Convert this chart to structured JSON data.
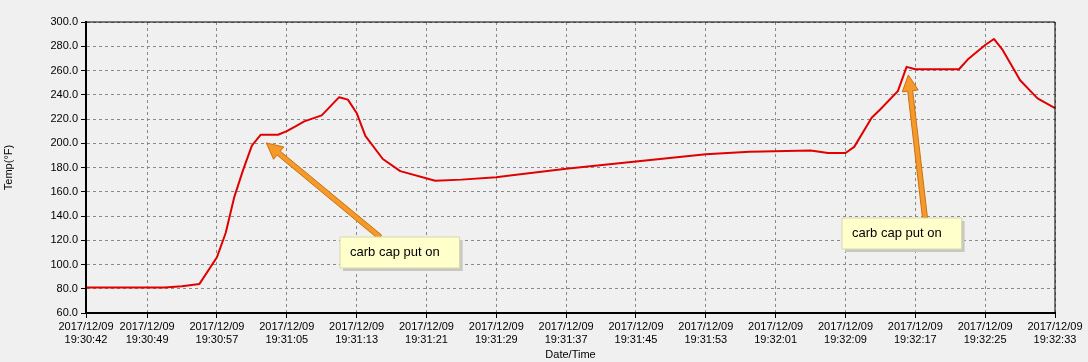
{
  "chart_data": {
    "type": "line",
    "xlabel": "Date/Time",
    "ylabel": "Temp(°F)",
    "x": [
      "2017-12-09T19:30:42",
      "2017-12-09T19:30:51",
      "2017-12-09T19:30:53",
      "2017-12-09T19:30:55",
      "2017-12-09T19:30:57",
      "2017-12-09T19:30:58",
      "2017-12-09T19:30:59",
      "2017-12-09T19:31:00",
      "2017-12-09T19:31:01",
      "2017-12-09T19:31:02",
      "2017-12-09T19:31:04",
      "2017-12-09T19:31:05",
      "2017-12-09T19:31:06",
      "2017-12-09T19:31:07",
      "2017-12-09T19:31:09",
      "2017-12-09T19:31:11",
      "2017-12-09T19:31:12",
      "2017-12-09T19:31:13",
      "2017-12-09T19:31:14",
      "2017-12-09T19:31:16",
      "2017-12-09T19:31:18",
      "2017-12-09T19:31:22",
      "2017-12-09T19:31:25",
      "2017-12-09T19:31:29",
      "2017-12-09T19:31:37",
      "2017-12-09T19:31:45",
      "2017-12-09T19:31:53",
      "2017-12-09T19:31:58",
      "2017-12-09T19:32:05",
      "2017-12-09T19:32:07",
      "2017-12-09T19:32:09",
      "2017-12-09T19:32:10",
      "2017-12-09T19:32:12",
      "2017-12-09T19:32:13",
      "2017-12-09T19:32:15",
      "2017-12-09T19:32:16",
      "2017-12-09T19:32:17",
      "2017-12-09T19:32:22",
      "2017-12-09T19:32:23",
      "2017-12-09T19:32:25",
      "2017-12-09T19:32:26",
      "2017-12-09T19:32:27",
      "2017-12-09T19:32:29",
      "2017-12-09T19:32:31",
      "2017-12-09T19:32:33"
    ],
    "series": [
      {
        "color": "#e00000",
        "values": [
          81,
          81,
          82,
          84,
          106,
          126,
          156,
          178,
          198,
          207,
          207,
          210,
          214,
          218,
          223,
          238,
          236,
          225,
          206,
          187,
          177,
          169,
          170,
          172,
          179,
          185,
          191,
          193,
          194,
          192,
          192,
          197,
          221,
          228,
          243,
          263,
          261,
          261,
          269,
          281,
          286,
          277,
          252,
          237,
          229
        ]
      }
    ],
    "xlim": [
      "2017-12-09T19:30:42",
      "2017-12-09T19:32:33"
    ],
    "xticks": [
      {
        "value": "2017-12-09T19:30:42",
        "label": "2017/12/09 19:30:42"
      },
      {
        "value": "2017-12-09T19:30:49",
        "label": "2017/12/09 19:30:49"
      },
      {
        "value": "2017-12-09T19:30:57",
        "label": "2017/12/09 19:30:57"
      },
      {
        "value": "2017-12-09T19:31:05",
        "label": "2017/12/09 19:31:05"
      },
      {
        "value": "2017-12-09T19:31:13",
        "label": "2017/12/09 19:31:13"
      },
      {
        "value": "2017-12-09T19:31:21",
        "label": "2017/12/09 19:31:21"
      },
      {
        "value": "2017-12-09T19:31:29",
        "label": "2017/12/09 19:31:29"
      },
      {
        "value": "2017-12-09T19:31:37",
        "label": "2017/12/09 19:31:37"
      },
      {
        "value": "2017-12-09T19:31:45",
        "label": "2017/12/09 19:31:45"
      },
      {
        "value": "2017-12-09T19:31:53",
        "label": "2017/12/09 19:31:53"
      },
      {
        "value": "2017-12-09T19:32:01",
        "label": "2017/12/09 19:32:01"
      },
      {
        "value": "2017-12-09T19:32:09",
        "label": "2017/12/09 19:32:09"
      },
      {
        "value": "2017-12-09T19:32:17",
        "label": "2017/12/09 19:32:17"
      },
      {
        "value": "2017-12-09T19:32:25",
        "label": "2017/12/09 19:32:25"
      },
      {
        "value": "2017-12-09T19:32:33",
        "label": "2017/12/09 19:32:33"
      }
    ],
    "ylim": [
      60,
      300
    ],
    "yticks": [
      {
        "value": 60,
        "label": "60.0"
      },
      {
        "value": 80,
        "label": "80.0"
      },
      {
        "value": 100,
        "label": "100.0"
      },
      {
        "value": 120,
        "label": "120.0"
      },
      {
        "value": 140,
        "label": "140.0"
      },
      {
        "value": 160,
        "label": "160.0"
      },
      {
        "value": 180,
        "label": "180.0"
      },
      {
        "value": 200,
        "label": "200.0"
      },
      {
        "value": 220,
        "label": "220.0"
      },
      {
        "value": 240,
        "label": "240.0"
      },
      {
        "value": 260,
        "label": "260.0"
      },
      {
        "value": 280,
        "label": "280.0"
      },
      {
        "value": 300,
        "label": "300.0"
      }
    ],
    "grid": true,
    "legend": false,
    "marker": "none",
    "line_style": "solid",
    "annotations": [
      "carb cap put on",
      "carb cap put on"
    ]
  }
}
